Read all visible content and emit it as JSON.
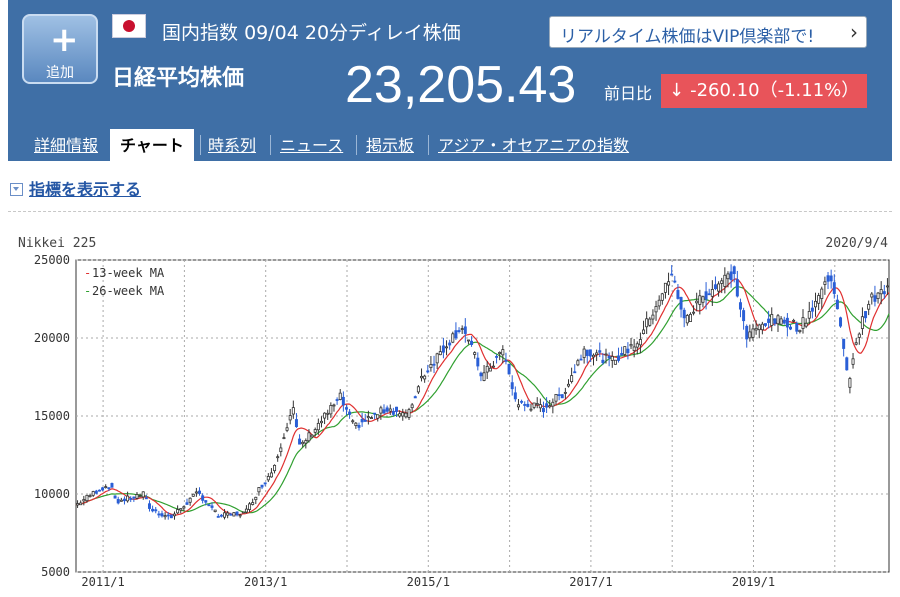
{
  "header": {
    "add_icon": "plus-icon",
    "add_label": "追加",
    "market_label": "国内指数",
    "date": "09/04",
    "delay_label": "20分ディレイ株価",
    "index_name": "日経平均株価",
    "price": "23,205.43",
    "change_label": "前日比",
    "change_arrow": "↓",
    "change_value": "-260.10（-1.11%）",
    "vip_text": "リアルタイム株価はVIP倶楽部で!",
    "vip_icon": "chevron-right-icon",
    "colors": {
      "header_bg": "#3f6fa6",
      "down": "#e8545a"
    }
  },
  "tabs": [
    {
      "label": "詳細情報",
      "active": false
    },
    {
      "label": "チャート",
      "active": true
    },
    {
      "label": "時系列",
      "active": false
    },
    {
      "label": "ニュース",
      "active": false
    },
    {
      "label": "掲示板",
      "active": false
    },
    {
      "label": "アジア・オセアニアの指数",
      "active": false
    }
  ],
  "indicator_link": "指標を表示する",
  "chart_data": {
    "type": "candlestick",
    "title": "Nikkei 225",
    "date_label": "2020/9/4",
    "ylim": [
      5000,
      25000
    ],
    "yticks": [
      "25000",
      "20000",
      "15000",
      "10000",
      "5000"
    ],
    "xticks": [
      "2011/1",
      "2013/1",
      "2015/1",
      "2017/1",
      "2019/1"
    ],
    "x_range": [
      "2010/9",
      "2020/9"
    ],
    "grid": true,
    "legend_position": "top-left",
    "legend": [
      {
        "name": "13-week MA",
        "color": "#e03030"
      },
      {
        "name": "26-week MA",
        "color": "#30a030"
      }
    ],
    "up_color": "#ffffff",
    "down_color": "#2a5fd6",
    "price_path": [
      [
        "2010/9",
        9300
      ],
      [
        "2010/12",
        10200
      ],
      [
        "2011/2",
        10600
      ],
      [
        "2011/3",
        9500
      ],
      [
        "2011/7",
        10000
      ],
      [
        "2011/8",
        9000
      ],
      [
        "2011/11",
        8500
      ],
      [
        "2012/3",
        10100
      ],
      [
        "2012/6",
        8600
      ],
      [
        "2012/10",
        8800
      ],
      [
        "2012/12",
        10300
      ],
      [
        "2013/2",
        11500
      ],
      [
        "2013/5",
        15600
      ],
      [
        "2013/6",
        13000
      ],
      [
        "2013/12",
        16200
      ],
      [
        "2014/2",
        14300
      ],
      [
        "2014/7",
        15500
      ],
      [
        "2014/10",
        15000
      ],
      [
        "2014/12",
        17500
      ],
      [
        "2015/4",
        19800
      ],
      [
        "2015/6",
        20800
      ],
      [
        "2015/9",
        17500
      ],
      [
        "2015/12",
        19200
      ],
      [
        "2016/2",
        15800
      ],
      [
        "2016/6",
        15500
      ],
      [
        "2016/9",
        16500
      ],
      [
        "2016/12",
        19300
      ],
      [
        "2017/4",
        18500
      ],
      [
        "2017/8",
        19800
      ],
      [
        "2017/11",
        22500
      ],
      [
        "2018/1",
        24000
      ],
      [
        "2018/3",
        21000
      ],
      [
        "2018/5",
        22500
      ],
      [
        "2018/10",
        24200
      ],
      [
        "2018/12",
        20000
      ],
      [
        "2019/3",
        21200
      ],
      [
        "2019/6",
        21000
      ],
      [
        "2019/8",
        20700
      ],
      [
        "2019/12",
        23800
      ],
      [
        "2020/1",
        23200
      ],
      [
        "2020/3",
        17000
      ],
      [
        "2020/4",
        19600
      ],
      [
        "2020/6",
        22300
      ],
      [
        "2020/9",
        23205
      ]
    ]
  }
}
